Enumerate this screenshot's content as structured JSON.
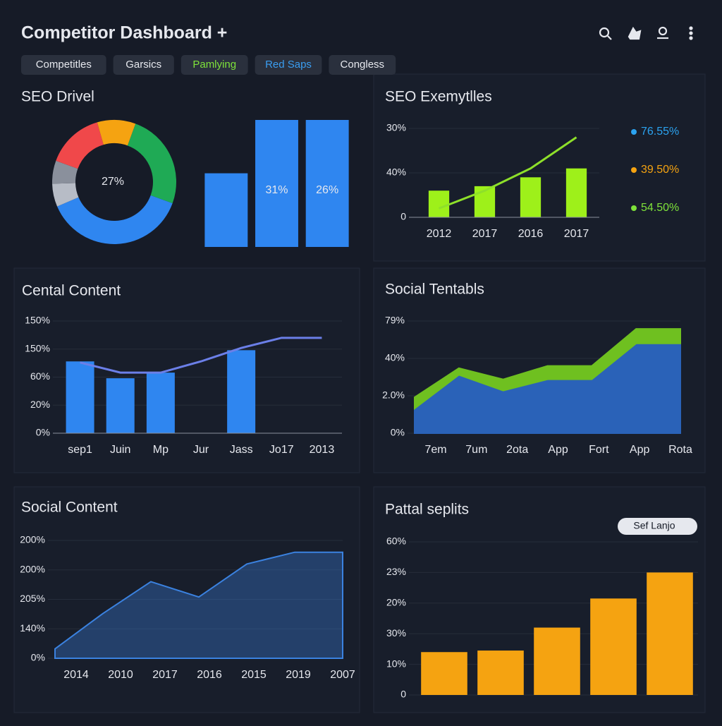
{
  "header": {
    "title": "Competitor Dashboard +"
  },
  "tabs": [
    {
      "label": "Competitles",
      "color": "#e6e8ee"
    },
    {
      "label": "Garsics",
      "color": "#e6e8ee"
    },
    {
      "label": "Pamlying",
      "color": "#7ee23a"
    },
    {
      "label": "Red Saps",
      "color": "#3a9df0"
    },
    {
      "label": "Congless",
      "color": "#e6e8ee"
    }
  ],
  "chart_data": [
    {
      "type": "donut",
      "title": "SEO Drivel",
      "center_label": "27%",
      "values": [
        25,
        38,
        6,
        6,
        15,
        10
      ],
      "colors": [
        "#1faa55",
        "#2f86f0",
        "#b7bcc6",
        "#8a909c",
        "#f0484a",
        "#f5a311"
      ]
    },
    {
      "type": "bar",
      "values": [
        58,
        100,
        100
      ],
      "color": "#2f86f0",
      "bar_labels": [
        null,
        "31%",
        "26%"
      ],
      "ylim": [
        0,
        100
      ]
    },
    {
      "type": "combo",
      "title": "SEO Exemytlles",
      "y_labels": [
        "30%",
        "40%",
        "0"
      ],
      "categories": [
        "2012",
        "2017",
        "2016",
        "2017"
      ],
      "ylim": [
        0,
        100
      ],
      "series": [
        {
          "kind": "bar",
          "color": "#9ef01a",
          "values": [
            30,
            35,
            45,
            55
          ]
        },
        {
          "kind": "line",
          "color": "#8ee02a",
          "values": [
            10,
            30,
            55,
            90
          ]
        }
      ],
      "legend": [
        {
          "label": "76.55%",
          "color": "#2ba3f0"
        },
        {
          "label": "39.50%",
          "color": "#f5a311"
        },
        {
          "label": "54.50%",
          "color": "#7ee23a"
        }
      ]
    },
    {
      "type": "combo",
      "title": "Cental Content",
      "y_labels": [
        "150%",
        "150%",
        "60%",
        "20%",
        "0%"
      ],
      "categories": [
        "sep1",
        "Juin",
        "Mp",
        "Jur",
        "Jass",
        "Jo17",
        "2013"
      ],
      "ylim": [
        0,
        100
      ],
      "series": [
        {
          "kind": "bar",
          "color": "#2f86f0",
          "values": [
            64,
            49,
            54,
            null,
            74,
            null,
            null
          ]
        },
        {
          "kind": "line",
          "color": "#6b7fe8",
          "values": [
            63,
            54,
            54,
            64,
            76,
            85,
            85
          ]
        }
      ]
    },
    {
      "type": "stacked_area",
      "title": "Social Tentabls",
      "y_labels": [
        "79%",
        "40%",
        "2.0%",
        "0%"
      ],
      "categories": [
        "7em",
        "7um",
        "2ota",
        "App",
        "Fort",
        "App",
        "Rota"
      ],
      "ylim": [
        0,
        100
      ],
      "series": [
        {
          "color": "#2a62b8",
          "values": [
            22,
            52,
            38,
            48,
            48,
            80,
            80
          ]
        },
        {
          "color": "#6fc020",
          "values": [
            10,
            6,
            10,
            12,
            12,
            13,
            13
          ]
        }
      ]
    },
    {
      "type": "area",
      "title": "Social Content",
      "y_labels": [
        "200%",
        "200%",
        "205%",
        "140%",
        "0%"
      ],
      "categories": [
        "2014",
        "2010",
        "2017",
        "2016",
        "2015",
        "2019",
        "2007"
      ],
      "ylim": [
        0,
        100
      ],
      "series": [
        {
          "color": "#3b82e0",
          "values": [
            8,
            38,
            65,
            52,
            80,
            90,
            90
          ]
        }
      ]
    },
    {
      "type": "bar",
      "title": "Pattal seplits",
      "y_labels": [
        "60%",
        "23%",
        "20%",
        "30%",
        "10%",
        "0"
      ],
      "categories": [
        null,
        null,
        null,
        null,
        null
      ],
      "values": [
        28,
        29,
        44,
        63,
        80
      ],
      "color": "#f5a311",
      "ylim": [
        0,
        100
      ],
      "button": "Sef Lanjo"
    }
  ]
}
